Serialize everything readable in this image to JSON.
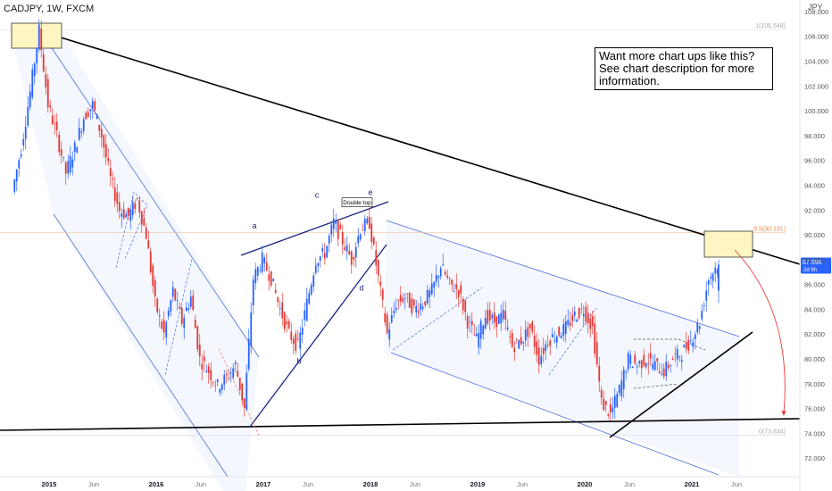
{
  "header": {
    "title": "CADJPY, 1W, FXCM",
    "unit": "JPY"
  },
  "info_box": {
    "lines": [
      "Want more chart ups like this?",
      "See chart description for more",
      "information."
    ]
  },
  "colors": {
    "up": "#2962ff",
    "down": "#e53935",
    "trendline": "#000000",
    "channel": "#4a6fd8",
    "fib": "#e88b4a",
    "wedge": "#1a237e",
    "arrow": "#e53935",
    "highlight": "#fff5c2"
  },
  "price_label": {
    "value": "87.596",
    "countdown": "2d 9h"
  },
  "chart_data": {
    "type": "candlestick",
    "symbol": "CADJPY",
    "timeframe": "1W",
    "source": "FXCM",
    "ylim": [
      70.5,
      108.5
    ],
    "y_ticks": [
      "72.000",
      "74.000",
      "76.000",
      "78.000",
      "80.000",
      "82.000",
      "84.000",
      "86.000",
      "88.000",
      "90.000",
      "92.000",
      "94.000",
      "96.000",
      "98.000",
      "100.000",
      "102.000",
      "104.000",
      "106.000",
      "108.000"
    ],
    "x_ticks": [
      "2015",
      "Jun",
      "2016",
      "Jun",
      "2017",
      "Jun",
      "2018",
      "Jun",
      "2019",
      "Jun",
      "2020",
      "Jun",
      "2021",
      "Jun"
    ],
    "x_range": [
      "2014-09",
      "2021-08"
    ],
    "fib_levels": [
      {
        "label": "1(106.548)",
        "price": 106.548
      },
      {
        "label": "0.5(90.191)",
        "price": 90.191
      },
      {
        "label": "0(73.834)",
        "price": 73.834
      }
    ],
    "annotations": [
      {
        "text": "a",
        "date": "2016-12",
        "price": 90.5
      },
      {
        "text": "b",
        "date": "2017-05",
        "price": 79.6
      },
      {
        "text": "c",
        "date": "2017-07",
        "price": 93.0
      },
      {
        "text": "d",
        "date": "2017-12",
        "price": 85.5
      },
      {
        "text": "e",
        "date": "2018-01",
        "price": 93.2
      },
      {
        "text": "Double top",
        "date": "2017-10",
        "price": 92.4
      }
    ],
    "price_path": [
      [
        "2014-09",
        93.5
      ],
      [
        "2014-10",
        97.0
      ],
      [
        "2014-11",
        101.5
      ],
      [
        "2014-12",
        106.5
      ],
      [
        "2015-01",
        100.5
      ],
      [
        "2015-02",
        98.0
      ],
      [
        "2015-03",
        95.0
      ],
      [
        "2015-04",
        97.0
      ],
      [
        "2015-05",
        99.5
      ],
      [
        "2015-06",
        100.5
      ],
      [
        "2015-07",
        98.0
      ],
      [
        "2015-08",
        94.5
      ],
      [
        "2015-09",
        92.0
      ],
      [
        "2015-10",
        91.5
      ],
      [
        "2015-11",
        92.8
      ],
      [
        "2015-12",
        90.0
      ],
      [
        "2016-01",
        84.5
      ],
      [
        "2016-02",
        82.0
      ],
      [
        "2016-03",
        85.5
      ],
      [
        "2016-04",
        83.0
      ],
      [
        "2016-05",
        85.0
      ],
      [
        "2016-06",
        80.0
      ],
      [
        "2016-07",
        79.0
      ],
      [
        "2016-08",
        77.8
      ],
      [
        "2016-09",
        78.5
      ],
      [
        "2016-10",
        79.5
      ],
      [
        "2016-11",
        76.0
      ],
      [
        "2016-12",
        86.5
      ],
      [
        "2017-01",
        88.0
      ],
      [
        "2017-02",
        86.5
      ],
      [
        "2017-03",
        84.0
      ],
      [
        "2017-04",
        82.0
      ],
      [
        "2017-05",
        81.0
      ],
      [
        "2017-06",
        84.5
      ],
      [
        "2017-07",
        88.0
      ],
      [
        "2017-08",
        88.5
      ],
      [
        "2017-09",
        91.0
      ],
      [
        "2017-10",
        89.5
      ],
      [
        "2017-11",
        88.0
      ],
      [
        "2017-12",
        90.5
      ],
      [
        "2018-01",
        91.0
      ],
      [
        "2018-02",
        86.5
      ],
      [
        "2018-03",
        82.0
      ],
      [
        "2018-04",
        84.5
      ],
      [
        "2018-05",
        85.0
      ],
      [
        "2018-06",
        84.0
      ],
      [
        "2018-07",
        84.5
      ],
      [
        "2018-08",
        85.5
      ],
      [
        "2018-09",
        87.5
      ],
      [
        "2018-10",
        86.0
      ],
      [
        "2018-11",
        85.5
      ],
      [
        "2018-12",
        83.0
      ],
      [
        "2019-01",
        81.5
      ],
      [
        "2019-02",
        83.5
      ],
      [
        "2019-03",
        83.0
      ],
      [
        "2019-04",
        83.5
      ],
      [
        "2019-05",
        81.0
      ],
      [
        "2019-06",
        81.5
      ],
      [
        "2019-07",
        82.5
      ],
      [
        "2019-08",
        80.0
      ],
      [
        "2019-09",
        81.5
      ],
      [
        "2019-10",
        82.0
      ],
      [
        "2019-11",
        82.5
      ],
      [
        "2019-12",
        83.5
      ],
      [
        "2020-01",
        84.0
      ],
      [
        "2020-02",
        82.5
      ],
      [
        "2020-03",
        76.5
      ],
      [
        "2020-04",
        75.5
      ],
      [
        "2020-05",
        77.5
      ],
      [
        "2020-06",
        80.0
      ],
      [
        "2020-07",
        79.5
      ],
      [
        "2020-08",
        80.0
      ],
      [
        "2020-09",
        79.5
      ],
      [
        "2020-10",
        79.0
      ],
      [
        "2020-11",
        80.0
      ],
      [
        "2020-12",
        80.5
      ],
      [
        "2021-01",
        81.5
      ],
      [
        "2021-02",
        83.0
      ],
      [
        "2021-03",
        86.5
      ],
      [
        "2021-04",
        87.6
      ]
    ]
  }
}
